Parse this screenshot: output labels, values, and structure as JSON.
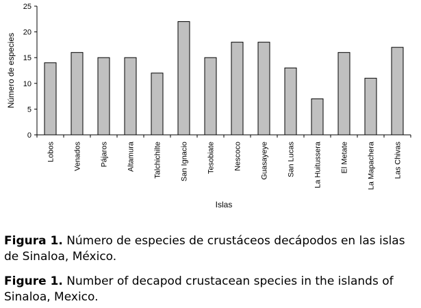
{
  "chart_data": {
    "type": "bar",
    "xlabel": "Islas",
    "ylabel": "Número de especies",
    "ylim": [
      0,
      25
    ],
    "yticks": [
      0,
      5,
      10,
      15,
      20,
      25
    ],
    "grid": false,
    "legend": "none",
    "bar_color": "#c0c0c0",
    "bar_edge_color": "#000000",
    "categories": [
      "Lobos",
      "Venados",
      "Pájaros",
      "Altamura",
      "Talchichilte",
      "San Ignacio",
      "Tesobiate",
      "Nescoco",
      "Guasayeye",
      "San Lucas",
      "La Huitussera",
      "El Metate",
      "La Mapachera",
      "Las Chivas"
    ],
    "values": [
      14,
      16,
      15,
      15,
      12,
      22,
      15,
      18,
      18,
      13,
      7,
      16,
      11,
      17
    ]
  },
  "captions": {
    "es_label": "Figura 1.",
    "es_text": "Número de especies de crustáceos decápodos en las islas de Sinaloa, México.",
    "en_label": "Figure 1.",
    "en_text": "Number of decapod crustacean species in the islands of Sinaloa, Mexico."
  }
}
